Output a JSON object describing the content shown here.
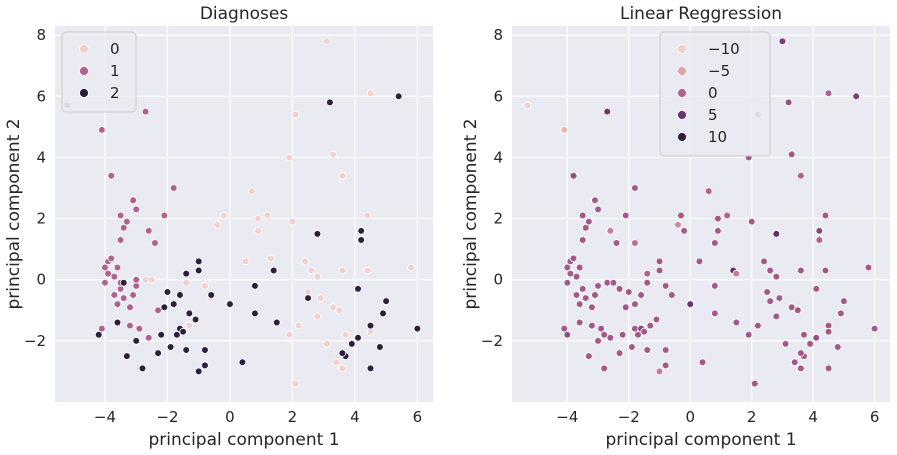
{
  "chart_data": [
    {
      "type": "scatter",
      "title": "Diagnoses",
      "xlabel": "principal component 1",
      "ylabel": "principal component 2",
      "xlim": [
        -5.6,
        6.5
      ],
      "ylim": [
        -4.0,
        8.3
      ],
      "xticks": [
        -4,
        -2,
        0,
        2,
        4,
        6
      ],
      "yticks": [
        -2,
        0,
        2,
        4,
        6,
        8
      ],
      "xtick_labels": [
        "−4",
        "−2",
        "0",
        "2",
        "4",
        "6"
      ],
      "ytick_labels": [
        "−2",
        "0",
        "2",
        "4",
        "6",
        "8"
      ],
      "grid": true,
      "legend": {
        "position": "top-left",
        "entries": [
          {
            "label": "0",
            "color": "#f3d0cc"
          },
          {
            "label": "1",
            "color": "#b1618f"
          },
          {
            "label": "2",
            "color": "#2d1e3e"
          }
        ]
      },
      "series": [
        {
          "name": "0",
          "color": "#f3d0cc",
          "points": [
            [
              3.1,
              7.8
            ],
            [
              4.5,
              6.1
            ],
            [
              2.1,
              5.4
            ],
            [
              3.3,
              4.1
            ],
            [
              1.9,
              4.0
            ],
            [
              3.6,
              3.4
            ],
            [
              0.7,
              2.9
            ],
            [
              1.2,
              2.1
            ],
            [
              4.4,
              2.1
            ],
            [
              0.9,
              2.0
            ],
            [
              -0.2,
              2.1
            ],
            [
              2.0,
              1.9
            ],
            [
              -0.4,
              1.8
            ],
            [
              0.9,
              1.6
            ],
            [
              0.5,
              0.6
            ],
            [
              1.3,
              0.7
            ],
            [
              2.4,
              0.6
            ],
            [
              3.6,
              0.3
            ],
            [
              4.4,
              0.3
            ],
            [
              5.8,
              0.4
            ],
            [
              2.8,
              0.1
            ],
            [
              2.6,
              0.3
            ],
            [
              -0.8,
              -0.2
            ],
            [
              -1.4,
              -0.1
            ],
            [
              -2.7,
              0.0
            ],
            [
              -2.5,
              0.0
            ],
            [
              2.5,
              -0.4
            ],
            [
              2.9,
              -0.6
            ],
            [
              3.3,
              -0.9
            ],
            [
              2.8,
              -1.2
            ],
            [
              3.5,
              -1.0
            ],
            [
              2.2,
              -1.5
            ],
            [
              1.9,
              -1.8
            ],
            [
              3.1,
              -2.1
            ],
            [
              3.4,
              -2.7
            ],
            [
              3.6,
              -2.9
            ],
            [
              2.1,
              -3.4
            ],
            [
              4.5,
              -1.7
            ],
            [
              0.8,
              -1.1
            ],
            [
              3.7,
              -1.8
            ],
            [
              -0.6,
              -0.6
            ],
            [
              -1.3,
              -1.5
            ]
          ]
        },
        {
          "name": "1",
          "color": "#b1618f",
          "points": [
            [
              -5.2,
              5.7
            ],
            [
              -4.1,
              4.9
            ],
            [
              -2.7,
              5.5
            ],
            [
              -3.8,
              3.4
            ],
            [
              -1.8,
              3.0
            ],
            [
              -3.1,
              2.6
            ],
            [
              -3.5,
              2.1
            ],
            [
              -2.1,
              2.1
            ],
            [
              -3.3,
              1.9
            ],
            [
              -3.0,
              2.3
            ],
            [
              -3.4,
              1.7
            ],
            [
              -3.5,
              1.3
            ],
            [
              -2.6,
              1.6
            ],
            [
              -2.4,
              1.2
            ],
            [
              -3.9,
              0.6
            ],
            [
              -3.8,
              0.7
            ],
            [
              -4.0,
              0.4
            ],
            [
              -3.6,
              0.4
            ],
            [
              -3.9,
              0.2
            ],
            [
              -3.7,
              0.1
            ],
            [
              -4.0,
              -0.1
            ],
            [
              -3.5,
              -0.3
            ],
            [
              -3.7,
              -0.5
            ],
            [
              -3.4,
              -0.6
            ],
            [
              -3.2,
              -0.9
            ],
            [
              -3.1,
              -0.5
            ],
            [
              -3.0,
              -0.2
            ],
            [
              -3.6,
              -0.8
            ],
            [
              -4.1,
              -1.6
            ],
            [
              -3.2,
              -1.5
            ],
            [
              -2.6,
              -1.9
            ],
            [
              -3.0,
              -0.0
            ],
            [
              -2.9,
              -1.6
            ],
            [
              -3.5,
              -0.1
            ],
            [
              -2.3,
              -1.0
            ]
          ]
        },
        {
          "name": "2",
          "color": "#2d1e3e",
          "points": [
            [
              5.4,
              6.0
            ],
            [
              3.2,
              5.8
            ],
            [
              4.2,
              1.6
            ],
            [
              4.2,
              1.3
            ],
            [
              2.8,
              1.5
            ],
            [
              -1.0,
              0.6
            ],
            [
              -1.0,
              0.3
            ],
            [
              -1.4,
              0.2
            ],
            [
              -0.6,
              -0.5
            ],
            [
              -3.4,
              -0.1
            ],
            [
              -2.0,
              -0.4
            ],
            [
              -1.6,
              -0.5
            ],
            [
              -1.8,
              -0.8
            ],
            [
              -2.1,
              -0.9
            ],
            [
              -1.3,
              -1.1
            ],
            [
              -1.1,
              -1.3
            ],
            [
              -1.6,
              -1.6
            ],
            [
              -1.5,
              -1.7
            ],
            [
              -1.7,
              -1.8
            ],
            [
              -2.2,
              -1.8
            ],
            [
              -1.9,
              -2.2
            ],
            [
              -1.4,
              -2.3
            ],
            [
              -0.8,
              -2.3
            ],
            [
              -1.0,
              -3.0
            ],
            [
              -2.3,
              -2.4
            ],
            [
              -3.0,
              -2.0
            ],
            [
              -3.3,
              -2.5
            ],
            [
              -2.8,
              -2.9
            ],
            [
              -3.6,
              -1.4
            ],
            [
              -4.2,
              -1.8
            ],
            [
              0.0,
              -0.8
            ],
            [
              0.8,
              -0.2
            ],
            [
              1.4,
              0.3
            ],
            [
              0.8,
              -1.1
            ],
            [
              1.5,
              -1.4
            ],
            [
              -0.8,
              -2.8
            ],
            [
              0.4,
              -2.7
            ],
            [
              2.5,
              -0.6
            ],
            [
              4.1,
              -0.3
            ],
            [
              5.0,
              -0.7
            ],
            [
              4.9,
              -1.1
            ],
            [
              4.5,
              -1.5
            ],
            [
              4.1,
              -1.9
            ],
            [
              4.8,
              -2.2
            ],
            [
              3.7,
              -2.5
            ],
            [
              4.5,
              -2.9
            ],
            [
              3.9,
              -2.1
            ],
            [
              3.6,
              -2.4
            ],
            [
              6.0,
              -1.6
            ]
          ]
        }
      ]
    },
    {
      "type": "scatter",
      "title": "Linear Reggression",
      "xlabel": "principal component 1",
      "ylabel": "principal component 2",
      "xlim": [
        -5.8,
        6.5
      ],
      "ylim": [
        -4.0,
        8.3
      ],
      "xticks": [
        -4,
        -2,
        0,
        2,
        4,
        6
      ],
      "yticks": [
        -2,
        0,
        2,
        4,
        6,
        8
      ],
      "xtick_labels": [
        "−4",
        "−2",
        "0",
        "2",
        "4",
        "6"
      ],
      "ytick_labels": [
        "−2",
        "0",
        "2",
        "4",
        "6",
        "8"
      ],
      "grid": true,
      "legend": {
        "position": "top-center",
        "entries": [
          {
            "label": "−10",
            "color": "#efd0cb"
          },
          {
            "label": "−5",
            "color": "#e0a3a8"
          },
          {
            "label": "0",
            "color": "#b1618f"
          },
          {
            "label": "5",
            "color": "#6b3370"
          },
          {
            "label": "10",
            "color": "#2d1e3e"
          }
        ]
      },
      "colorscale": {
        "min": -10,
        "max": 10
      },
      "points": [
        [
          -5.3,
          5.7,
          -10
        ],
        [
          -4.1,
          4.9,
          -7
        ],
        [
          -2.7,
          5.5,
          5
        ],
        [
          3.0,
          7.8,
          4
        ],
        [
          4.5,
          6.1,
          0
        ],
        [
          5.4,
          6.0,
          4
        ],
        [
          3.2,
          5.8,
          2
        ],
        [
          2.2,
          5.4,
          -1
        ],
        [
          3.3,
          4.1,
          1
        ],
        [
          1.9,
          4.0,
          1
        ],
        [
          3.6,
          3.4,
          0
        ],
        [
          -3.8,
          3.4,
          2
        ],
        [
          -1.8,
          3.0,
          1
        ],
        [
          0.6,
          2.9,
          0
        ],
        [
          -3.1,
          2.6,
          1
        ],
        [
          -3.0,
          2.3,
          1
        ],
        [
          -3.5,
          2.1,
          1
        ],
        [
          -2.1,
          2.1,
          1
        ],
        [
          -0.3,
          2.1,
          1
        ],
        [
          1.2,
          2.1,
          0
        ],
        [
          4.4,
          2.1,
          1
        ],
        [
          -3.3,
          1.9,
          1
        ],
        [
          -3.4,
          1.7,
          1
        ],
        [
          -0.4,
          1.8,
          -3
        ],
        [
          0.9,
          2.0,
          1
        ],
        [
          2.0,
          1.9,
          1
        ],
        [
          -2.6,
          1.6,
          -2
        ],
        [
          -3.5,
          1.3,
          1
        ],
        [
          -2.4,
          1.2,
          1
        ],
        [
          -1.8,
          1.2,
          -1
        ],
        [
          0.9,
          1.6,
          1
        ],
        [
          -0.2,
          1.6,
          1
        ],
        [
          4.2,
          1.6,
          3
        ],
        [
          4.2,
          1.3,
          0
        ],
        [
          2.8,
          1.5,
          6
        ],
        [
          0.8,
          1.2,
          1
        ],
        [
          -3.9,
          0.6,
          1
        ],
        [
          -3.8,
          0.7,
          1
        ],
        [
          -4.0,
          0.4,
          1
        ],
        [
          -3.6,
          0.4,
          1
        ],
        [
          -3.9,
          0.2,
          1
        ],
        [
          -3.7,
          0.1,
          1
        ],
        [
          -4.0,
          -0.1,
          1
        ],
        [
          -1.0,
          0.6,
          1
        ],
        [
          -1.0,
          0.3,
          1
        ],
        [
          -1.4,
          0.2,
          0
        ],
        [
          0.3,
          0.6,
          1
        ],
        [
          1.4,
          0.3,
          6
        ],
        [
          1.5,
          0.2,
          -2
        ],
        [
          2.4,
          0.6,
          1
        ],
        [
          2.6,
          0.3,
          1
        ],
        [
          3.6,
          0.3,
          1
        ],
        [
          4.4,
          0.3,
          1
        ],
        [
          5.8,
          0.4,
          1
        ],
        [
          2.8,
          0.1,
          1
        ],
        [
          -3.5,
          -0.3,
          1
        ],
        [
          -3.7,
          -0.5,
          1
        ],
        [
          -3.4,
          -0.6,
          1
        ],
        [
          -3.2,
          -0.9,
          1
        ],
        [
          -3.1,
          -0.5,
          1
        ],
        [
          -3.0,
          -0.2,
          1
        ],
        [
          -2.7,
          -0.1,
          1
        ],
        [
          -2.5,
          -0.1,
          1
        ],
        [
          -2.3,
          -0.3,
          1
        ],
        [
          -2.0,
          -0.4,
          1
        ],
        [
          -1.6,
          -0.5,
          1
        ],
        [
          -1.8,
          -0.8,
          1
        ],
        [
          -2.1,
          -0.9,
          1
        ],
        [
          -1.4,
          -0.1,
          1
        ],
        [
          -0.8,
          -0.2,
          1
        ],
        [
          -0.6,
          -0.5,
          1
        ],
        [
          0.0,
          -0.8,
          5
        ],
        [
          0.8,
          -0.2,
          1
        ],
        [
          2.5,
          -0.4,
          1
        ],
        [
          2.9,
          -0.6,
          1
        ],
        [
          3.3,
          -0.9,
          1
        ],
        [
          2.8,
          -1.2,
          1
        ],
        [
          3.5,
          -1.0,
          1
        ],
        [
          4.1,
          -0.3,
          1
        ],
        [
          5.0,
          -0.7,
          1
        ],
        [
          4.9,
          -1.1,
          1
        ],
        [
          -3.6,
          -0.8,
          1
        ],
        [
          -4.1,
          -1.6,
          1
        ],
        [
          -4.0,
          -1.8,
          2
        ],
        [
          -3.6,
          -1.4,
          1
        ],
        [
          -3.2,
          -1.5,
          1
        ],
        [
          -2.9,
          -1.6,
          1
        ],
        [
          -2.6,
          -1.9,
          1
        ],
        [
          -2.8,
          -1.8,
          1
        ],
        [
          -1.8,
          -1.6,
          1
        ],
        [
          -1.6,
          -1.6,
          3
        ],
        [
          -1.5,
          -1.7,
          1
        ],
        [
          -1.7,
          -1.8,
          1
        ],
        [
          -1.3,
          -1.5,
          1
        ],
        [
          -1.1,
          -1.3,
          1
        ],
        [
          -2.2,
          -1.8,
          1
        ],
        [
          -1.9,
          -2.2,
          1
        ],
        [
          -1.4,
          -2.3,
          1
        ],
        [
          -0.8,
          -2.3,
          1
        ],
        [
          -1.0,
          -3.0,
          -2
        ],
        [
          -0.8,
          -2.8,
          1
        ],
        [
          -2.3,
          -2.4,
          1
        ],
        [
          -3.0,
          -2.0,
          1
        ],
        [
          -3.3,
          -2.5,
          1
        ],
        [
          -2.8,
          -2.9,
          1
        ],
        [
          0.4,
          -2.7,
          1
        ],
        [
          0.8,
          -1.1,
          1
        ],
        [
          1.5,
          -1.4,
          1
        ],
        [
          2.2,
          -1.5,
          1
        ],
        [
          1.9,
          -1.8,
          1
        ],
        [
          3.1,
          -2.1,
          1
        ],
        [
          3.4,
          -2.7,
          1
        ],
        [
          3.6,
          -2.9,
          1
        ],
        [
          3.7,
          -2.5,
          1
        ],
        [
          3.9,
          -2.1,
          1
        ],
        [
          3.6,
          -2.4,
          1
        ],
        [
          2.1,
          -3.4,
          1
        ],
        [
          4.5,
          -2.9,
          1
        ],
        [
          4.1,
          -1.9,
          2
        ],
        [
          4.5,
          -1.5,
          1
        ],
        [
          4.5,
          -1.7,
          1
        ],
        [
          4.8,
          -2.2,
          1
        ],
        [
          6.0,
          -1.6,
          1
        ],
        [
          3.1,
          -2.1,
          1
        ],
        [
          3.7,
          -1.8,
          1
        ],
        [
          2.6,
          -0.7,
          1
        ]
      ]
    }
  ]
}
